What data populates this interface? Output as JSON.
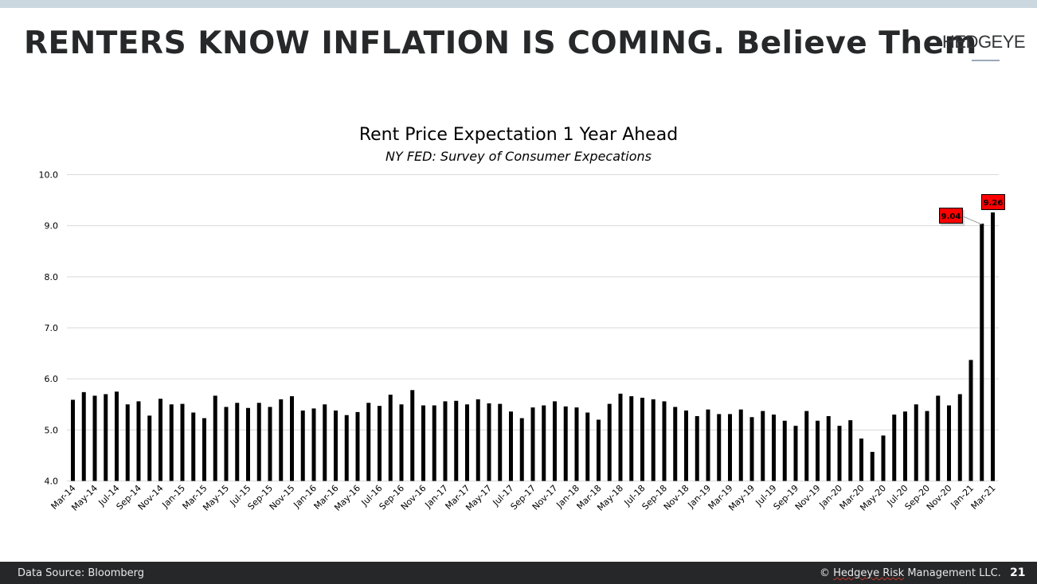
{
  "slide": {
    "headline": "RENTERS KNOW INFLATION IS COMING.  Believe Them",
    "logo": "HEDGEYE",
    "footer": {
      "source": "Data Source: Bloomberg",
      "copyright_symbol": "©",
      "copyright_brand": "Hedgeye Risk",
      "copyright_rest": " Management LLC.",
      "page_number": "21"
    }
  },
  "colors": {
    "bar": "#000000",
    "gridline": "#d9d9d9",
    "callout_fill": "#ff0000",
    "footer_bg": "#262729",
    "topbar": "#cbd8e0"
  },
  "chart_data": {
    "type": "bar",
    "title": "Rent Price Expectation 1 Year Ahead",
    "subtitle": "NY FED: Survey of Consumer Expecations",
    "xlabel": "",
    "ylabel": "",
    "ylim": [
      4.0,
      10.0
    ],
    "yticks": [
      "4.0",
      "5.0",
      "6.0",
      "7.0",
      "8.0",
      "9.0",
      "10.0"
    ],
    "grid": true,
    "legend": "none",
    "tick_labels_shown": [
      "Mar-14",
      "May-14",
      "Jul-14",
      "Sep-14",
      "Nov-14",
      "Jan-15",
      "Mar-15",
      "May-15",
      "Jul-15",
      "Sep-15",
      "Nov-15",
      "Jan-16",
      "Mar-16",
      "May-16",
      "Jul-16",
      "Sep-16",
      "Nov-16",
      "Jan-17",
      "Mar-17",
      "May-17",
      "Jul-17",
      "Sep-17",
      "Nov-17",
      "Jan-18",
      "Mar-18",
      "May-18",
      "Jul-18",
      "Sep-18",
      "Nov-18",
      "Jan-19",
      "Mar-19",
      "May-19",
      "Jul-19",
      "Sep-19",
      "Nov-19",
      "Jan-20",
      "Mar-20",
      "May-20",
      "Jul-20",
      "Sep-20",
      "Nov-20",
      "Jan-21",
      "Mar-21"
    ],
    "categories": [
      "Mar-14",
      "Apr-14",
      "May-14",
      "Jun-14",
      "Jul-14",
      "Aug-14",
      "Sep-14",
      "Oct-14",
      "Nov-14",
      "Dec-14",
      "Jan-15",
      "Feb-15",
      "Mar-15",
      "Apr-15",
      "May-15",
      "Jun-15",
      "Jul-15",
      "Aug-15",
      "Sep-15",
      "Oct-15",
      "Nov-15",
      "Dec-15",
      "Jan-16",
      "Feb-16",
      "Mar-16",
      "Apr-16",
      "May-16",
      "Jun-16",
      "Jul-16",
      "Aug-16",
      "Sep-16",
      "Oct-16",
      "Nov-16",
      "Dec-16",
      "Jan-17",
      "Feb-17",
      "Mar-17",
      "Apr-17",
      "May-17",
      "Jun-17",
      "Jul-17",
      "Aug-17",
      "Sep-17",
      "Oct-17",
      "Nov-17",
      "Dec-17",
      "Jan-18",
      "Feb-18",
      "Mar-18",
      "Apr-18",
      "May-18",
      "Jun-18",
      "Jul-18",
      "Aug-18",
      "Sep-18",
      "Oct-18",
      "Nov-18",
      "Dec-18",
      "Jan-19",
      "Feb-19",
      "Mar-19",
      "Apr-19",
      "May-19",
      "Jun-19",
      "Jul-19",
      "Aug-19",
      "Sep-19",
      "Oct-19",
      "Nov-19",
      "Dec-19",
      "Jan-20",
      "Feb-20",
      "Mar-20",
      "Apr-20",
      "May-20",
      "Jun-20",
      "Jul-20",
      "Aug-20",
      "Sep-20",
      "Oct-20",
      "Nov-20",
      "Dec-20",
      "Jan-21",
      "Feb-21",
      "Mar-21"
    ],
    "series": [
      {
        "name": "Rent Price Expectation 1 Year Ahead",
        "values": [
          5.59,
          5.74,
          5.67,
          5.7,
          5.75,
          5.5,
          5.56,
          5.28,
          5.61,
          5.5,
          5.51,
          5.34,
          5.23,
          5.67,
          5.45,
          5.53,
          5.43,
          5.53,
          5.45,
          5.6,
          5.66,
          5.38,
          5.42,
          5.5,
          5.38,
          5.29,
          5.35,
          5.53,
          5.47,
          5.69,
          5.5,
          5.78,
          5.48,
          5.48,
          5.56,
          5.57,
          5.5,
          5.6,
          5.52,
          5.51,
          5.36,
          5.23,
          5.44,
          5.48,
          5.56,
          5.46,
          5.44,
          5.34,
          5.2,
          5.51,
          5.71,
          5.66,
          5.63,
          5.6,
          5.56,
          5.45,
          5.38,
          5.27,
          5.4,
          5.31,
          5.31,
          5.4,
          5.25,
          5.37,
          5.3,
          5.18,
          5.08,
          5.37,
          5.18,
          5.27,
          5.08,
          5.19,
          4.83,
          4.57,
          4.89,
          5.3,
          5.36,
          5.5,
          5.37,
          5.67,
          5.48,
          5.7,
          6.37,
          9.04,
          9.26
        ]
      }
    ],
    "annotations": [
      {
        "category": "Feb-21",
        "label": "9.04"
      },
      {
        "category": "Mar-21",
        "label": "9.26"
      }
    ]
  }
}
